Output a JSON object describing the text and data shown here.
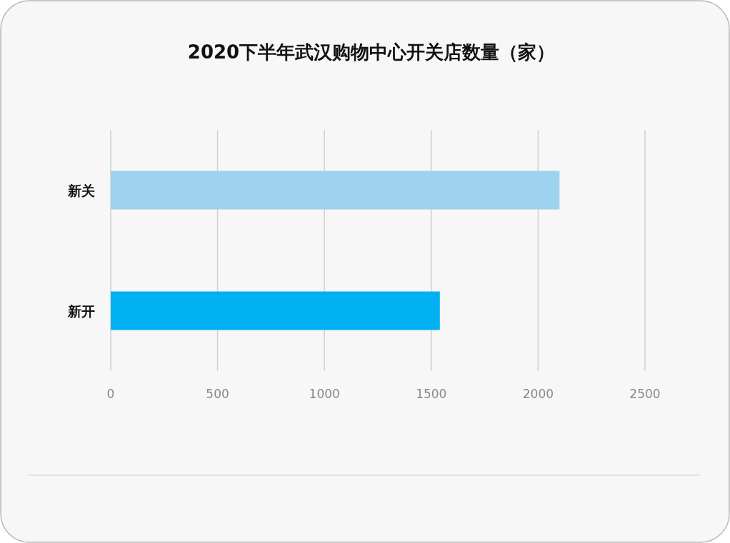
{
  "chart_data": {
    "type": "bar",
    "orientation": "horizontal",
    "title": "2020下半年武汉购物中心开关店数量（家）",
    "categories": [
      "新关",
      "新开"
    ],
    "values": [
      2100,
      1540
    ],
    "colors": [
      "#9dd3ee",
      "#00b0f0"
    ],
    "xlim": [
      0,
      2500
    ],
    "xticks": [
      0,
      500,
      1000,
      1500,
      2000,
      2500
    ],
    "grid": "x"
  }
}
